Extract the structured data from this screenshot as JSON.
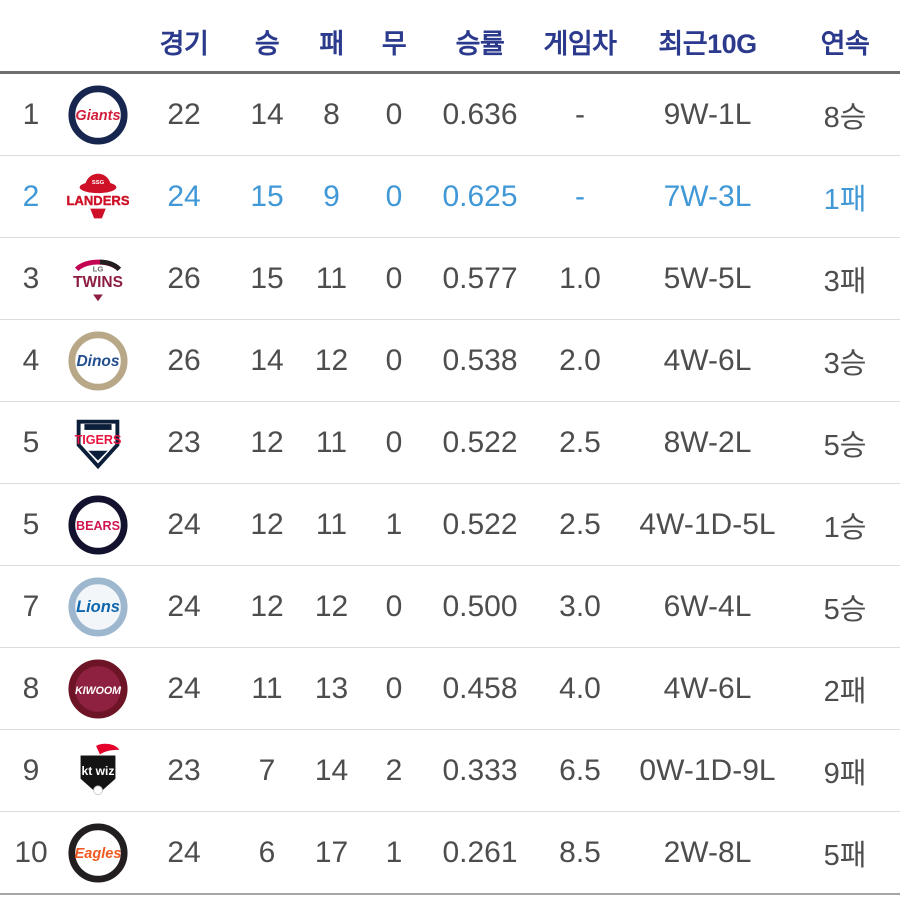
{
  "table": {
    "columns": [
      {
        "key": "games",
        "label": "경기"
      },
      {
        "key": "wins",
        "label": "승"
      },
      {
        "key": "losses",
        "label": "패"
      },
      {
        "key": "draws",
        "label": "무"
      },
      {
        "key": "pct",
        "label": "승률"
      },
      {
        "key": "gb",
        "label": "게임차"
      },
      {
        "key": "recent10",
        "label": "최근10G"
      },
      {
        "key": "streak",
        "label": "연속"
      }
    ],
    "colors": {
      "header_text": "#2b3a8c",
      "body_text": "#4d4d4d",
      "highlight_text": "#4098d7",
      "header_border": "#6f6f6f",
      "row_border": "#dcdcdc",
      "bottom_border": "#a5a5a5"
    },
    "rows": [
      {
        "rank": "1",
        "team": "Lotte Giants",
        "highlighted": false,
        "games": "22",
        "wins": "14",
        "losses": "8",
        "draws": "0",
        "pct": "0.636",
        "gb": "-",
        "recent10": "9W-1L",
        "streak": "8승",
        "logo": {
          "kind": "circle",
          "ring": "#16264f",
          "bg": "#ffffff",
          "text": "Giants",
          "text_color": "#d21f3c",
          "size": 15,
          "italic": true
        }
      },
      {
        "rank": "2",
        "team": "SSG Landers",
        "highlighted": true,
        "games": "24",
        "wins": "15",
        "losses": "9",
        "draws": "0",
        "pct": "0.625",
        "gb": "-",
        "recent10": "7W-3L",
        "streak": "1패",
        "logo": {
          "kind": "ufo",
          "accent": "#ce1126",
          "text": "LANDERS",
          "text_color": "#ce1126",
          "top": "SSG"
        }
      },
      {
        "rank": "3",
        "team": "LG Twins",
        "highlighted": false,
        "games": "26",
        "wins": "15",
        "losses": "11",
        "draws": "0",
        "pct": "0.577",
        "gb": "1.0",
        "recent10": "5W-5L",
        "streak": "3패",
        "logo": {
          "kind": "twins",
          "accent1": "#231f20",
          "accent2": "#c30452",
          "top": "LG",
          "text": "TWINS",
          "text_color": "#8c1d40"
        }
      },
      {
        "rank": "4",
        "team": "NC Dinos",
        "highlighted": false,
        "games": "26",
        "wins": "14",
        "losses": "12",
        "draws": "0",
        "pct": "0.538",
        "gb": "2.0",
        "recent10": "4W-6L",
        "streak": "3승",
        "logo": {
          "kind": "circle",
          "ring": "#b8a888",
          "bg": "#ffffff",
          "text": "Dinos",
          "text_color": "#234f8f",
          "size": 16,
          "italic": true
        }
      },
      {
        "rank": "5",
        "team": "KIA Tigers",
        "highlighted": false,
        "games": "23",
        "wins": "12",
        "losses": "11",
        "draws": "0",
        "pct": "0.522",
        "gb": "2.5",
        "recent10": "8W-2L",
        "streak": "5승",
        "logo": {
          "kind": "shield",
          "stroke": "#0b1f3a",
          "bg": "#ffffff",
          "text": "TIGERS",
          "text_color": "#e8133d"
        }
      },
      {
        "rank": "5",
        "team": "Doosan Bears",
        "highlighted": false,
        "games": "24",
        "wins": "12",
        "losses": "11",
        "draws": "1",
        "pct": "0.522",
        "gb": "2.5",
        "recent10": "4W-1D-5L",
        "streak": "1승",
        "logo": {
          "kind": "circle",
          "ring": "#12122e",
          "bg": "#ffffff",
          "text": "BEARS",
          "text_color": "#d0164e",
          "size": 13,
          "italic": false
        }
      },
      {
        "rank": "7",
        "team": "Samsung Lions",
        "highlighted": false,
        "games": "24",
        "wins": "12",
        "losses": "12",
        "draws": "0",
        "pct": "0.500",
        "gb": "3.0",
        "recent10": "6W-4L",
        "streak": "5승",
        "logo": {
          "kind": "circle",
          "ring": "#9db7cf",
          "bg": "#f3f6f9",
          "text": "Lions",
          "text_color": "#0d66ad",
          "size": 17,
          "italic": true
        }
      },
      {
        "rank": "8",
        "team": "Kiwoom Heroes",
        "highlighted": false,
        "games": "24",
        "wins": "11",
        "losses": "13",
        "draws": "0",
        "pct": "0.458",
        "gb": "4.0",
        "recent10": "4W-6L",
        "streak": "2패",
        "logo": {
          "kind": "circle",
          "ring": "#6d1427",
          "bg": "#8e2140",
          "text": "KIWOOM",
          "text_color": "#ffffff",
          "size": 11,
          "italic": true
        }
      },
      {
        "rank": "9",
        "team": "kt wiz",
        "highlighted": false,
        "games": "23",
        "wins": "7",
        "losses": "14",
        "draws": "2",
        "pct": "0.333",
        "gb": "6.5",
        "recent10": "0W-1D-9L",
        "streak": "9패",
        "logo": {
          "kind": "ktwiz",
          "bg": "#141414",
          "accent": "#e4002b",
          "text": "kt wiz",
          "text_color": "#ffffff"
        }
      },
      {
        "rank": "10",
        "team": "Hanwha Eagles",
        "highlighted": false,
        "games": "24",
        "wins": "6",
        "losses": "17",
        "draws": "1",
        "pct": "0.261",
        "gb": "8.5",
        "recent10": "2W-8L",
        "streak": "5패",
        "logo": {
          "kind": "circle",
          "ring": "#231f20",
          "bg": "#ffffff",
          "text": "Eagles",
          "text_color": "#f05a22",
          "size": 15,
          "italic": true
        }
      }
    ]
  }
}
